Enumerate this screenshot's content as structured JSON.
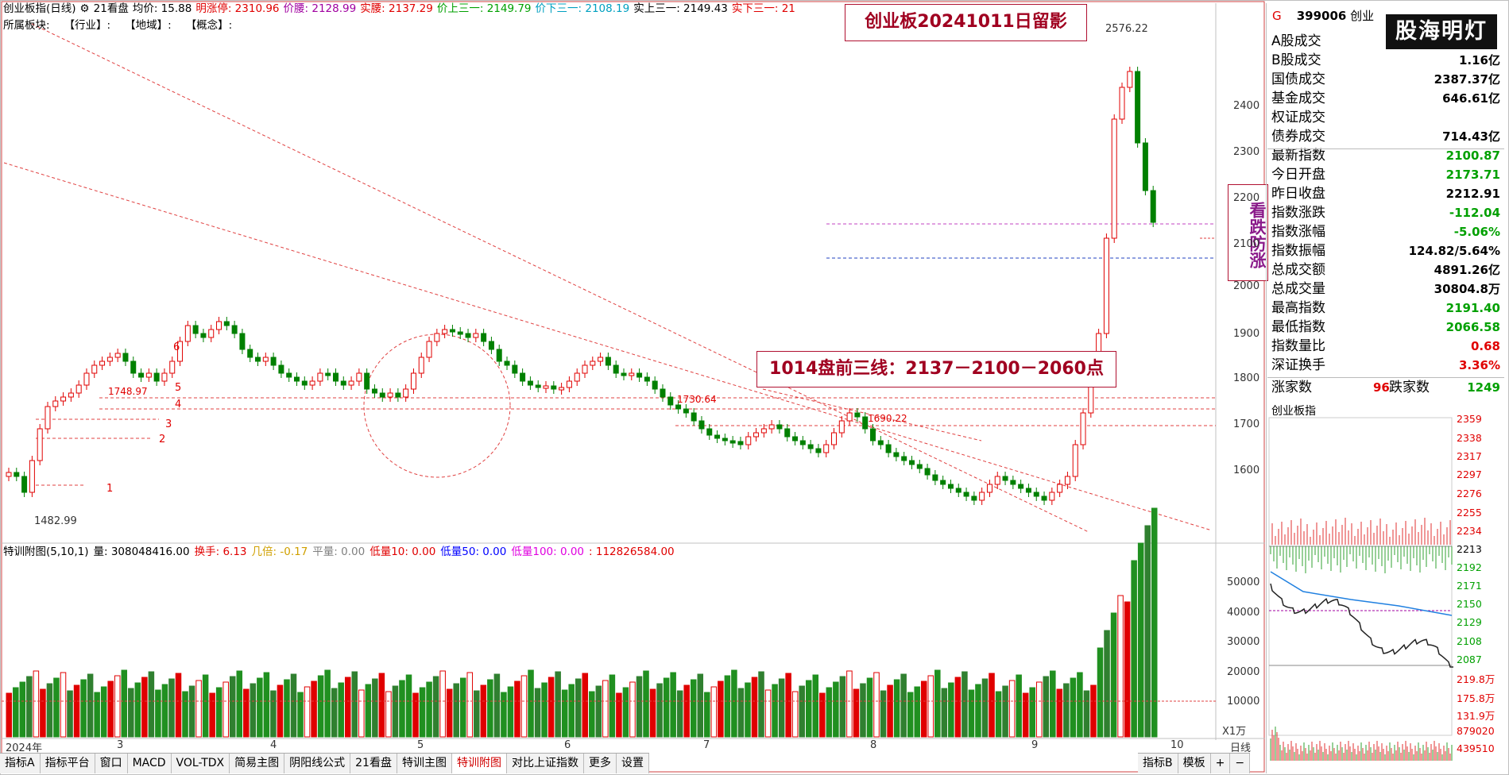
{
  "header": {
    "title": "创业板指(日线)",
    "icon": "gear-icon",
    "items": [
      {
        "label": "21看盘",
        "color": "#000000"
      },
      {
        "label": "均价: 15.88",
        "color": "#000000"
      },
      {
        "label": "明涨停: 2310.96",
        "color": "#e00000"
      },
      {
        "label": "价腰: 2128.99",
        "color": "#a000a0"
      },
      {
        "label": "实腰: 2137.29",
        "color": "#e00000"
      },
      {
        "label": "价上三一: 2149.79",
        "color": "#00a000"
      },
      {
        "label": "价下三一: 2108.19",
        "color": "#00a0c0"
      },
      {
        "label": "实上三一: 2149.43",
        "color": "#000000"
      },
      {
        "label": "实下三一: 21",
        "color": "#e00000"
      }
    ],
    "sub": [
      "所属板块:",
      "【行业】:",
      "【地域】:",
      "【概念】:"
    ]
  },
  "annotations": {
    "title_box": "创业板20241011日留影",
    "lines_box": "1014盘前三线：2137－2100－2060点",
    "warn_box": "看跌防涨",
    "high_mark": "2576.22",
    "low_mark": "1482.99",
    "level_labels": [
      "1748.97",
      "1730.64",
      "1690.22"
    ],
    "numbered": [
      "1",
      "2",
      "3",
      "4",
      "5",
      "6"
    ]
  },
  "price_axis": [
    "2400",
    "2300",
    "2200",
    "2100",
    "2000",
    "1900",
    "1800",
    "1700",
    "1600"
  ],
  "volume_header": {
    "title": "特训附图(5,10,1)",
    "items": [
      {
        "label": "量: 308048416.00",
        "color": "#000000"
      },
      {
        "label": "换手: 6.13",
        "color": "#e00000"
      },
      {
        "label": "几倍: -0.17",
        "color": "#d0a000"
      },
      {
        "label": "平量: 0.00",
        "color": "#808080"
      },
      {
        "label": "低量10: 0.00",
        "color": "#e00000"
      },
      {
        "label": "低量50: 0.00",
        "color": "#0000ff"
      },
      {
        "label": "低量100: 0.00",
        "color": "#e000e0"
      },
      {
        "label": ": 112826584.00",
        "color": "#e00000"
      }
    ]
  },
  "volume_axis": [
    "50000",
    "40000",
    "30000",
    "20000",
    "10000"
  ],
  "volume_unit": "X1万",
  "time_axis": [
    "2024年",
    "3",
    "4",
    "5",
    "6",
    "7",
    "8",
    "9",
    "10"
  ],
  "tabs": [
    "指标A",
    "指标平台",
    "窗口",
    "MACD",
    "VOL-TDX",
    "简易主图",
    "阴阳线公式",
    "21看盘",
    "特训主图",
    "特训附图",
    "对比上证指数",
    "更多",
    "设置"
  ],
  "active_tab": "特训附图",
  "tabs_right": [
    "指标B",
    "模板",
    "+",
    "−"
  ],
  "period": "日线",
  "right_panel": {
    "code": "399006",
    "name": "创业",
    "logo": "股海明灯",
    "rows": [
      {
        "k": "A股成交",
        "v": "",
        "color": "#000000"
      },
      {
        "k": "B股成交",
        "v": "1.16亿",
        "color": "#000000"
      },
      {
        "k": "国债成交",
        "v": "2387.37亿",
        "color": "#000000"
      },
      {
        "k": "基金成交",
        "v": "646.61亿",
        "color": "#000000"
      },
      {
        "k": "权证成交",
        "v": "",
        "color": "#000000"
      },
      {
        "k": "债券成交",
        "v": "714.43亿",
        "color": "#000000"
      },
      {
        "k": "最新指数",
        "v": "2100.87",
        "color": "#00a000"
      },
      {
        "k": "今日开盘",
        "v": "2173.71",
        "color": "#00a000"
      },
      {
        "k": "昨日收盘",
        "v": "2212.91",
        "color": "#000000"
      },
      {
        "k": "指数涨跌",
        "v": "-112.04",
        "color": "#00a000"
      },
      {
        "k": "指数涨幅",
        "v": "-5.06%",
        "color": "#00a000"
      },
      {
        "k": "指数振幅",
        "v": "124.82/5.64%",
        "color": "#000000"
      },
      {
        "k": "总成交额",
        "v": "4891.26亿",
        "color": "#000000"
      },
      {
        "k": "总成交量",
        "v": "30804.8万",
        "color": "#000000"
      },
      {
        "k": "最高指数",
        "v": "2191.40",
        "color": "#00a000"
      },
      {
        "k": "最低指数",
        "v": "2066.58",
        "color": "#00a000"
      },
      {
        "k": "指数量比",
        "v": "0.68",
        "color": "#e00000"
      },
      {
        "k": "深证换手",
        "v": "3.36%",
        "color": "#e00000"
      }
    ],
    "up_label": "涨家数",
    "up_value": "96",
    "down_label": "跌家数",
    "down_value": "1249",
    "mini_title": "创业板指",
    "mini_axis": [
      "2359",
      "2338",
      "2317",
      "2297",
      "2276",
      "2255",
      "2234",
      "2213",
      "2192",
      "2171",
      "2150",
      "2129",
      "2108",
      "2087",
      "219.8万",
      "175.8万",
      "131.9万",
      "879020",
      "439510"
    ]
  }
}
